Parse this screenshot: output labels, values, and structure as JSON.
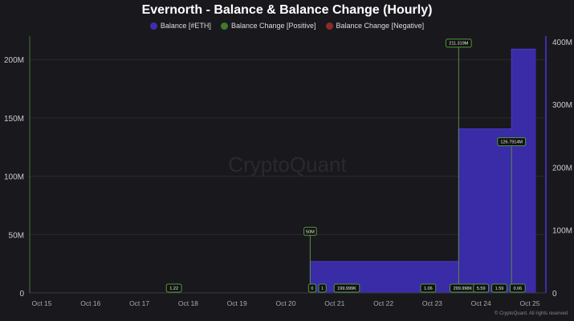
{
  "chart_data": {
    "type": "area",
    "title": "Evernorth - Balance & Balance Change (Hourly)",
    "legend": [
      {
        "name": "Balance [#ETH]",
        "color": "#3d2eb0"
      },
      {
        "name": "Balance Change [Positive]",
        "color": "#3f7a2e"
      },
      {
        "name": "Balance Change [Negative]",
        "color": "#8c2b2b"
      }
    ],
    "legend_placement": "top",
    "x_ticks": [
      "Oct 15",
      "Oct 16",
      "Oct 17",
      "Oct 18",
      "Oct 19",
      "Oct 20",
      "Oct 21",
      "Oct 22",
      "Oct 23",
      "Oct 24",
      "Oct 25"
    ],
    "y_left": {
      "ticks": [
        "0",
        "50M",
        "100M",
        "150M",
        "200M"
      ],
      "values": [
        0,
        50000000,
        100000000,
        150000000,
        200000000
      ],
      "range": [
        0,
        213000000
      ]
    },
    "y_right": {
      "ticks": [
        "0",
        "100M",
        "200M",
        "300M",
        "400M"
      ],
      "values": [
        0,
        100000000,
        200000000,
        300000000,
        400000000
      ],
      "range": [
        0,
        400000000
      ]
    },
    "grid": true,
    "balance_series": [
      {
        "x": "Oct 15 00:00",
        "y": 0
      },
      {
        "x": "Oct 20 12:00",
        "y": 0
      },
      {
        "x": "Oct 20 12:00",
        "y": 50000000
      },
      {
        "x": "Oct 23 13:00",
        "y": 50000000
      },
      {
        "x": "Oct 23 13:00",
        "y": 261000000
      },
      {
        "x": "Oct 24 15:00",
        "y": 261000000
      },
      {
        "x": "Oct 24 15:00",
        "y": 388000000
      },
      {
        "x": "Oct 25 03:00",
        "y": 388000000
      }
    ],
    "positive_changes": [
      {
        "x": "Oct 17 17:00",
        "value": 1.22,
        "label": "1.22"
      },
      {
        "x": "Oct 20 12:00",
        "value": 50000000,
        "label": "50M"
      },
      {
        "x": "Oct 20 13:00",
        "value": 0,
        "label": "0"
      },
      {
        "x": "Oct 20 18:00",
        "value": 1,
        "label": "1"
      },
      {
        "x": "Oct 21 06:00",
        "value": 199999,
        "label": "199.999K"
      },
      {
        "x": "Oct 22 22:00",
        "value": 1.06,
        "label": "1.06"
      },
      {
        "x": "Oct 23 13:00",
        "value": 211319000,
        "label": "211.319M"
      },
      {
        "x": "Oct 23 15:00",
        "value": 299998,
        "label": "299.998K"
      },
      {
        "x": "Oct 24 00:00",
        "value": 5.59,
        "label": "5.59"
      },
      {
        "x": "Oct 24 09:00",
        "value": 1.59,
        "label": "1.59"
      },
      {
        "x": "Oct 24 15:00",
        "value": 126791400,
        "label": "126.7914M"
      },
      {
        "x": "Oct 24 18:00",
        "value": 0.06,
        "label": "0.06"
      }
    ]
  },
  "watermark": "CryptoQuant",
  "copyright": "© CryptoQuant. All rights reserved"
}
